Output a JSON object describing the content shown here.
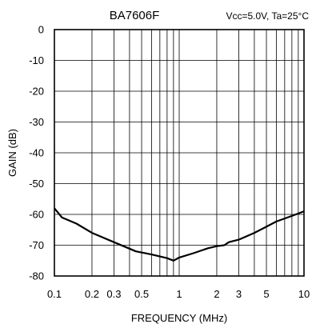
{
  "chart_data": {
    "type": "line",
    "title": "BA7606F",
    "subtitle": "Vcc=5.0V, Ta=25°C",
    "xlabel": "FREQUENCY (MHz)",
    "ylabel": "GAIN (dB)",
    "xscale": "log",
    "xlim": [
      0.1,
      10
    ],
    "ylim": [
      -80,
      0
    ],
    "grid": true,
    "x_ticks": [
      0.1,
      0.2,
      0.3,
      0.5,
      1,
      2,
      3,
      5,
      10
    ],
    "x_tick_labels": [
      "0.1",
      "0.2",
      "0.3",
      "0.5",
      "1",
      "2",
      "3",
      "5",
      "10"
    ],
    "y_ticks": [
      0,
      -10,
      -20,
      -30,
      -40,
      -50,
      -60,
      -70,
      -80
    ],
    "y_tick_labels": [
      "0",
      "-10",
      "-20",
      "-30",
      "-40",
      "-50",
      "-60",
      "-70",
      "-80"
    ],
    "line_color": "#000000",
    "series": [
      {
        "x": [
          0.1,
          0.115,
          0.15,
          0.2,
          0.3,
          0.45,
          0.6,
          0.8,
          0.9,
          1.0,
          1.3,
          1.7,
          2.0,
          2.3,
          2.5,
          3.0,
          4.0,
          5.0,
          6.0,
          8.0,
          10.0
        ],
        "y": [
          -58,
          -61,
          -63,
          -66,
          -69,
          -72,
          -73,
          -74.2,
          -75,
          -74,
          -72.6,
          -71,
          -70.3,
          -70,
          -69,
          -68.2,
          -66,
          -64,
          -62.3,
          -60.5,
          -59
        ]
      }
    ]
  }
}
